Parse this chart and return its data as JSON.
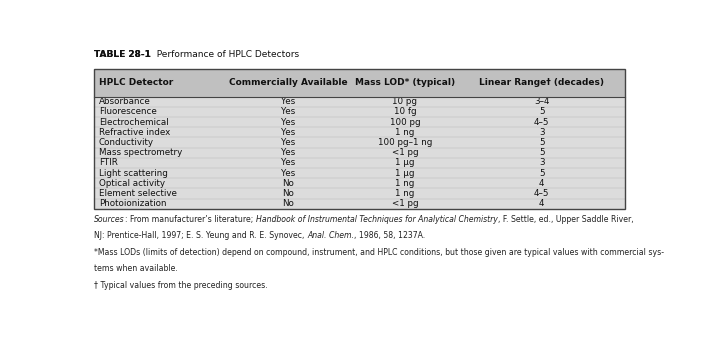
{
  "title_bold": "TABLE 28-1",
  "title_rest": "  Performance of HPLC Detectors",
  "headers": [
    "HPLC Detector",
    "Commercially Available",
    "Mass LOD* (typical)",
    "Linear Range† (decades)"
  ],
  "rows": [
    [
      "Absorbance",
      "Yes",
      "10 pg",
      "3–4"
    ],
    [
      "Fluorescence",
      "Yes",
      "10 fg",
      "5"
    ],
    [
      "Electrochemical",
      "Yes",
      "100 pg",
      "4–5"
    ],
    [
      "Refractive index",
      "Yes",
      "1 ng",
      "3"
    ],
    [
      "Conductivity",
      "Yes",
      "100 pg–1 ng",
      "5"
    ],
    [
      "Mass spectrometry",
      "Yes",
      "<1 pg",
      "5"
    ],
    [
      "FTIR",
      "Yes",
      "1 μg",
      "3"
    ],
    [
      "Light scattering",
      "Yes",
      "1 μg",
      "5"
    ],
    [
      "Optical activity",
      "No",
      "1 ng",
      "4"
    ],
    [
      "Element selective",
      "No",
      "1 ng",
      "4–5"
    ],
    [
      "Photoionization",
      "No",
      "<1 pg",
      "4"
    ]
  ],
  "fn_line1_parts": [
    [
      "Sources",
      "italic"
    ],
    [
      ": From manufacturer’s literature; ",
      "normal"
    ],
    [
      "Handbook of Instrumental Techniques for Analytical Chemistry",
      "italic"
    ],
    [
      ", F. Settle, ed., Upper Saddle River,",
      "normal"
    ]
  ],
  "fn_line2_parts": [
    [
      "NJ: Prentice-Hall, 1997; E. S. Yeung and R. E. Synovec, ",
      "normal"
    ],
    [
      "Anal. Chem.",
      "italic"
    ],
    [
      ", 1986, 58, 1237A.",
      "normal"
    ]
  ],
  "fn_line3": "*Mass LODs (limits of detection) depend on compound, instrument, and HPLC conditions, but those given are typical values with commercial sys-",
  "fn_line4": "tems when available.",
  "fn_line5": "† Typical values from the preceding sources.",
  "bg_color": "#dcdcdc",
  "header_bg": "#c0c0c0",
  "table_border_color": "#444444",
  "row_line_color": "#aaaaaa",
  "text_color": "#111111",
  "fn_text_color": "#222222"
}
